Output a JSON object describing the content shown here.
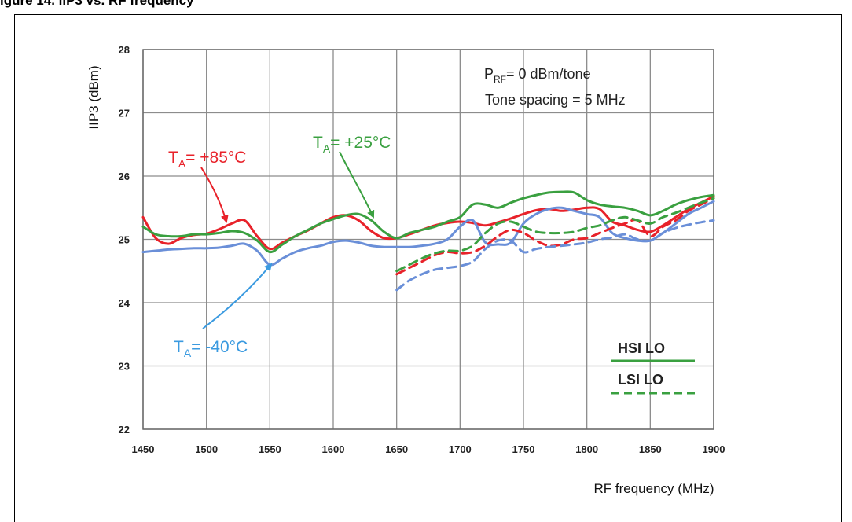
{
  "caption": "igure 14. IIP3 vs. RF frequency",
  "chart_data": {
    "type": "line",
    "xlabel": "RF frequency (MHz)",
    "ylabel": "IIP3 (dBm)",
    "xlim": [
      1450,
      1900
    ],
    "ylim": [
      22,
      28
    ],
    "xticks": [
      "1450",
      "1500",
      "1550",
      "1600",
      "1650",
      "1700",
      "1750",
      "1800",
      "1850",
      "1900"
    ],
    "yticks": [
      "22",
      "23",
      "24",
      "25",
      "26",
      "27",
      "28"
    ],
    "grid": true,
    "annotation_lines": [
      "= 0 dBm/tone",
      "Tone spacing = 5 MHz"
    ],
    "annotation_sym": {
      "main": "P",
      "sub": "RF"
    },
    "temp_labels": [
      {
        "main": "T",
        "sub": "A",
        "text": "= +85°C",
        "color": "#e8222a"
      },
      {
        "main": "T",
        "sub": "A",
        "text": "= +25°C",
        "color": "#3aa040"
      },
      {
        "main": "T",
        "sub": "A",
        "text": "= -40°C",
        "color": "#3a9ae0"
      }
    ],
    "legend": {
      "position": "bottom-right",
      "solid": "HSI  LO",
      "dashed": "LSI  LO"
    },
    "colors": {
      "red": "#e8222a",
      "green": "#3aa040",
      "blue": "#6a8fd8"
    },
    "series": [
      {
        "color": "#e8222a",
        "style": "solid",
        "x": [
          1450,
          1460,
          1470,
          1480,
          1490,
          1500,
          1510,
          1520,
          1530,
          1540,
          1550,
          1560,
          1570,
          1580,
          1590,
          1600,
          1610,
          1620,
          1630,
          1640,
          1650,
          1660,
          1670,
          1680,
          1690,
          1700,
          1710,
          1720,
          1730,
          1740,
          1750,
          1760,
          1770,
          1780,
          1790,
          1800,
          1810,
          1820,
          1830,
          1840,
          1850,
          1860,
          1870,
          1880,
          1890,
          1900
        ],
        "y": [
          25.35,
          25.02,
          24.93,
          25.02,
          25.07,
          25.09,
          25.16,
          25.25,
          25.3,
          25.05,
          24.85,
          24.95,
          25.05,
          25.14,
          25.25,
          25.35,
          25.38,
          25.3,
          25.13,
          25.02,
          25.02,
          25.08,
          25.15,
          25.22,
          25.26,
          25.28,
          25.26,
          25.22,
          25.27,
          25.33,
          25.4,
          25.46,
          25.48,
          25.45,
          25.47,
          25.5,
          25.48,
          25.28,
          25.22,
          25.15,
          25.12,
          25.22,
          25.35,
          25.48,
          25.58,
          25.68
        ]
      },
      {
        "color": "#3aa040",
        "style": "solid",
        "x": [
          1450,
          1460,
          1470,
          1480,
          1490,
          1500,
          1510,
          1520,
          1530,
          1540,
          1550,
          1560,
          1570,
          1580,
          1590,
          1600,
          1610,
          1620,
          1630,
          1640,
          1650,
          1660,
          1670,
          1680,
          1690,
          1700,
          1710,
          1720,
          1730,
          1740,
          1750,
          1760,
          1770,
          1780,
          1790,
          1800,
          1810,
          1820,
          1830,
          1840,
          1850,
          1860,
          1870,
          1880,
          1890,
          1900
        ],
        "y": [
          25.2,
          25.08,
          25.05,
          25.05,
          25.08,
          25.08,
          25.1,
          25.13,
          25.1,
          24.98,
          24.8,
          24.92,
          25.05,
          25.15,
          25.25,
          25.32,
          25.38,
          25.4,
          25.3,
          25.12,
          25.02,
          25.1,
          25.15,
          25.2,
          25.28,
          25.35,
          25.55,
          25.55,
          25.5,
          25.58,
          25.65,
          25.7,
          25.74,
          25.75,
          25.74,
          25.62,
          25.55,
          25.52,
          25.5,
          25.45,
          25.38,
          25.45,
          25.55,
          25.62,
          25.67,
          25.7
        ]
      },
      {
        "color": "#6a8fd8",
        "style": "solid",
        "x": [
          1450,
          1460,
          1470,
          1480,
          1490,
          1500,
          1510,
          1520,
          1530,
          1540,
          1550,
          1560,
          1570,
          1580,
          1590,
          1600,
          1610,
          1620,
          1630,
          1640,
          1650,
          1660,
          1670,
          1680,
          1690,
          1700,
          1710,
          1720,
          1730,
          1740,
          1750,
          1760,
          1770,
          1780,
          1790,
          1800,
          1810,
          1820,
          1830,
          1840,
          1850,
          1860,
          1870,
          1880,
          1890,
          1900
        ],
        "y": [
          24.8,
          24.82,
          24.84,
          24.85,
          24.86,
          24.86,
          24.87,
          24.9,
          24.93,
          24.82,
          24.6,
          24.7,
          24.8,
          24.86,
          24.9,
          24.96,
          24.98,
          24.95,
          24.9,
          24.88,
          24.88,
          24.88,
          24.9,
          24.93,
          25.0,
          25.2,
          25.3,
          24.95,
          24.92,
          24.95,
          25.25,
          25.4,
          25.48,
          25.5,
          25.45,
          25.4,
          25.35,
          25.1,
          25.02,
          24.98,
          24.98,
          25.1,
          25.25,
          25.4,
          25.5,
          25.6
        ]
      },
      {
        "color": "#e8222a",
        "style": "dashed",
        "x": [
          1650,
          1660,
          1670,
          1680,
          1690,
          1700,
          1710,
          1720,
          1730,
          1740,
          1750,
          1760,
          1770,
          1780,
          1790,
          1800,
          1810,
          1820,
          1830,
          1840,
          1850,
          1860,
          1870,
          1880,
          1890,
          1900
        ],
        "y": [
          24.45,
          24.55,
          24.65,
          24.75,
          24.8,
          24.78,
          24.8,
          24.9,
          25.05,
          25.15,
          25.1,
          24.98,
          24.9,
          24.92,
          25.0,
          25.02,
          25.1,
          25.18,
          25.25,
          25.3,
          25.05,
          25.2,
          25.3,
          25.45,
          25.55,
          25.65
        ]
      },
      {
        "color": "#3aa040",
        "style": "dashed",
        "x": [
          1650,
          1660,
          1670,
          1680,
          1690,
          1700,
          1710,
          1720,
          1730,
          1740,
          1750,
          1760,
          1770,
          1780,
          1790,
          1800,
          1810,
          1820,
          1830,
          1840,
          1850,
          1860,
          1870,
          1880,
          1890,
          1900
        ],
        "y": [
          24.5,
          24.6,
          24.7,
          24.78,
          24.82,
          24.82,
          24.9,
          25.1,
          25.25,
          25.28,
          25.2,
          25.12,
          25.1,
          25.1,
          25.12,
          25.18,
          25.22,
          25.3,
          25.35,
          25.3,
          25.25,
          25.35,
          25.42,
          25.5,
          25.58,
          25.65
        ]
      },
      {
        "color": "#6a8fd8",
        "style": "dashed",
        "x": [
          1650,
          1660,
          1670,
          1680,
          1690,
          1700,
          1710,
          1720,
          1730,
          1740,
          1750,
          1760,
          1770,
          1780,
          1790,
          1800,
          1810,
          1820,
          1830,
          1840,
          1850,
          1860,
          1870,
          1880,
          1890,
          1900
        ],
        "y": [
          24.2,
          24.35,
          24.45,
          24.52,
          24.55,
          24.58,
          24.65,
          24.85,
          24.98,
          24.98,
          24.8,
          24.85,
          24.88,
          24.9,
          24.92,
          24.95,
          25.0,
          25.03,
          25.08,
          25.0,
          24.98,
          25.1,
          25.18,
          25.23,
          25.27,
          25.3
        ]
      }
    ]
  }
}
